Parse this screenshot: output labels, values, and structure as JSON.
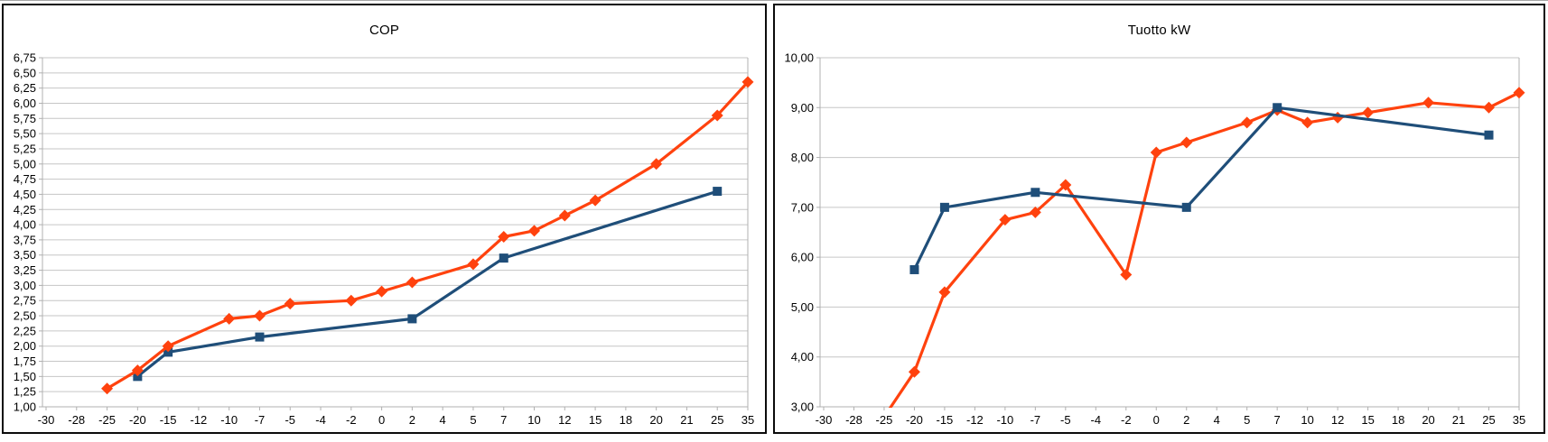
{
  "colors": {
    "series_blue": "#1F4E79",
    "series_orange": "#FF420E",
    "gridline": "#c6c6c6",
    "axis": "#b0b0b0",
    "text": "#000000",
    "panel_border": "#0b0b0b"
  },
  "chart_data": [
    {
      "type": "line",
      "title": "COP",
      "legend": "none",
      "grid": "horizontal",
      "categories": [
        "-30",
        "-28",
        "-25",
        "-20",
        "-15",
        "-12",
        "-10",
        "-7",
        "-5",
        "-4",
        "-2",
        "0",
        "2",
        "4",
        "5",
        "7",
        "10",
        "12",
        "15",
        "18",
        "20",
        "21",
        "25",
        "35"
      ],
      "x_axis": {
        "label": ""
      },
      "y_axis": {
        "min": 1.0,
        "max": 6.75,
        "step": 0.25,
        "decimals": 2,
        "decimal_separator": ","
      },
      "series": [
        {
          "name": "blue-squares",
          "color": "#1F4E79",
          "marker": "square",
          "points": [
            [
              "-20",
              1.5
            ],
            [
              "-15",
              1.9
            ],
            [
              "-7",
              2.15
            ],
            [
              "2",
              2.45
            ],
            [
              "7",
              3.45
            ],
            [
              "25",
              4.55
            ]
          ]
        },
        {
          "name": "orange-diamonds",
          "color": "#FF420E",
          "marker": "diamond",
          "points": [
            [
              "-25",
              1.3
            ],
            [
              "-20",
              1.6
            ],
            [
              "-15",
              2.0
            ],
            [
              "-10",
              2.45
            ],
            [
              "-7",
              2.5
            ],
            [
              "-5",
              2.7
            ],
            [
              "-2",
              2.75
            ],
            [
              "0",
              2.9
            ],
            [
              "2",
              3.05
            ],
            [
              "5",
              3.35
            ],
            [
              "7",
              3.8
            ],
            [
              "10",
              3.9
            ],
            [
              "12",
              4.15
            ],
            [
              "15",
              4.4
            ],
            [
              "20",
              5.0
            ],
            [
              "25",
              5.8
            ],
            [
              "35",
              6.35
            ]
          ]
        }
      ]
    },
    {
      "type": "line",
      "title": "Tuotto kW",
      "legend": "none",
      "grid": "horizontal",
      "categories": [
        "-30",
        "-28",
        "-25",
        "-20",
        "-15",
        "-12",
        "-10",
        "-7",
        "-5",
        "-4",
        "-2",
        "0",
        "2",
        "4",
        "5",
        "7",
        "10",
        "12",
        "15",
        "18",
        "20",
        "21",
        "25",
        "35"
      ],
      "x_axis": {
        "label": ""
      },
      "y_axis": {
        "min": 3.0,
        "max": 10.0,
        "step": 1.0,
        "decimals": 2,
        "decimal_separator": ","
      },
      "series": [
        {
          "name": "orange-diamonds",
          "color": "#FF420E",
          "marker": "diamond",
          "points": [
            [
              "-25",
              2.8
            ],
            [
              "-20",
              3.7
            ],
            [
              "-15",
              5.3
            ],
            [
              "-10",
              6.75
            ],
            [
              "-7",
              6.9
            ],
            [
              "-5",
              7.45
            ],
            [
              "-2",
              5.65
            ],
            [
              "0",
              8.1
            ],
            [
              "2",
              8.3
            ],
            [
              "5",
              8.7
            ],
            [
              "7",
              8.95
            ],
            [
              "10",
              8.7
            ],
            [
              "12",
              8.8
            ],
            [
              "15",
              8.9
            ],
            [
              "20",
              9.1
            ],
            [
              "25",
              9.0
            ],
            [
              "35",
              9.3
            ]
          ]
        },
        {
          "name": "blue-squares",
          "color": "#1F4E79",
          "marker": "square",
          "points": [
            [
              "-20",
              5.75
            ],
            [
              "-15",
              7.0
            ],
            [
              "-7",
              7.3
            ],
            [
              "2",
              7.0
            ],
            [
              "7",
              9.0
            ],
            [
              "25",
              8.45
            ]
          ]
        }
      ]
    }
  ]
}
